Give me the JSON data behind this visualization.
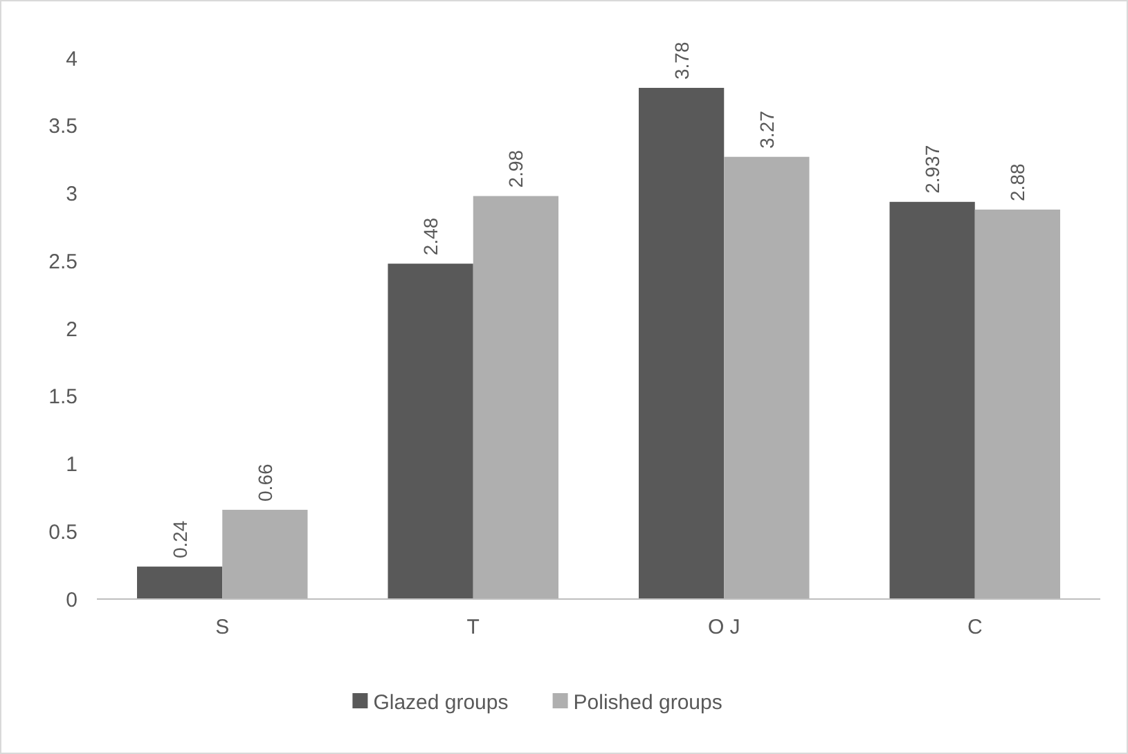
{
  "chart_data": {
    "type": "bar",
    "categories": [
      "S",
      "T",
      "O J",
      "C"
    ],
    "series": [
      {
        "name": "Glazed groups",
        "color": "#595959",
        "values": [
          0.24,
          2.48,
          3.78,
          2.937
        ]
      },
      {
        "name": "Polished groups",
        "color": "#afafaf",
        "values": [
          0.66,
          2.98,
          3.27,
          2.88
        ]
      }
    ],
    "ylim": [
      0,
      4
    ],
    "yticks": [
      0,
      {
        "value": 0.5,
        "label": "0.5"
      },
      1,
      {
        "value": 1.5,
        "label": "1.5"
      },
      2,
      {
        "value": 2.5,
        "label": "2.5"
      },
      3,
      {
        "value": 3.5,
        "label": "3.5"
      },
      4
    ],
    "grid": false,
    "data_labels": true,
    "legend": "bottom"
  }
}
